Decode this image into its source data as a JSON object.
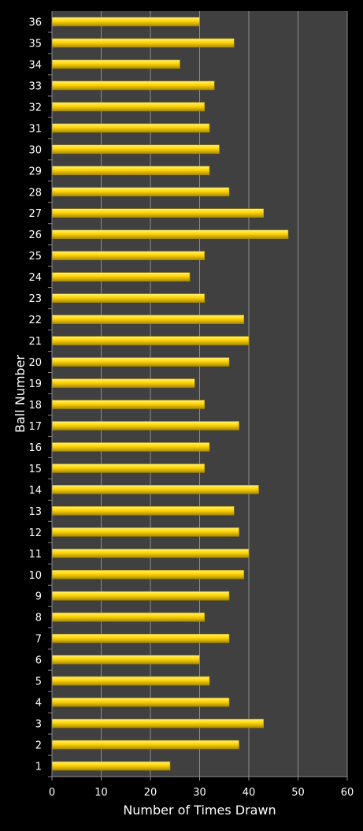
{
  "chart_data": {
    "type": "bar",
    "orientation": "horizontal",
    "xlabel": "Number of Times Drawn",
    "ylabel": "Ball Number",
    "xlim": [
      0,
      60
    ],
    "x_ticks": [
      "0",
      "10",
      "20",
      "30",
      "40",
      "50",
      "60"
    ],
    "grid": "vertical",
    "categories": [
      "1",
      "2",
      "3",
      "4",
      "5",
      "6",
      "7",
      "8",
      "9",
      "10",
      "11",
      "12",
      "13",
      "14",
      "15",
      "16",
      "17",
      "18",
      "19",
      "20",
      "21",
      "22",
      "23",
      "24",
      "25",
      "26",
      "27",
      "28",
      "29",
      "30",
      "31",
      "32",
      "33",
      "34",
      "35",
      "36"
    ],
    "values": [
      24,
      38,
      43,
      36,
      32,
      30,
      36,
      31,
      36,
      39,
      40,
      38,
      37,
      42,
      31,
      32,
      38,
      31,
      29,
      36,
      40,
      39,
      31,
      28,
      31,
      48,
      43,
      36,
      32,
      34,
      32,
      31,
      33,
      26,
      37,
      30
    ],
    "colors": {
      "background": "#000000",
      "plot_area": "#404040",
      "gridline": "#8c8c8c",
      "bar_top": "#fff27a",
      "bar_mid": "#ffd400",
      "bar_bottom": "#a88a00",
      "text": "#ffffff"
    }
  }
}
